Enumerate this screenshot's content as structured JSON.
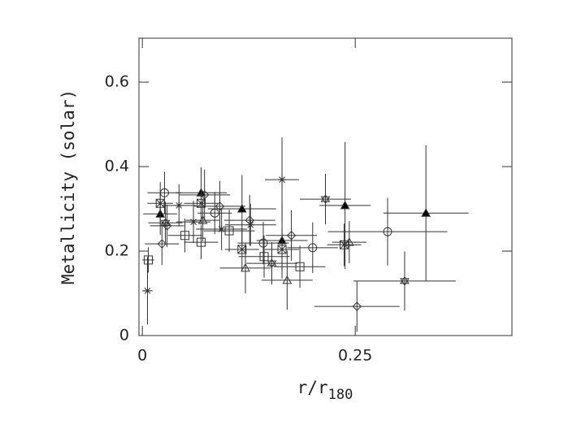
{
  "chart_data": {
    "type": "scatter",
    "xlabel": {
      "text": "r/r",
      "subscript": "180"
    },
    "ylabel": "Metallicity (solar)",
    "xlim": [
      -0.004,
      0.434
    ],
    "ylim": [
      0,
      0.704
    ],
    "xticks": [
      0,
      0.25
    ],
    "yticks": [
      0,
      {
        "value": 0.2,
        "label": "0.2"
      },
      {
        "value": 0.4,
        "label": "0.4"
      },
      {
        "value": 0.6,
        "label": "0.6"
      }
    ],
    "series": [
      {
        "marker": "triangle-filled",
        "color": "#000000",
        "x": [
          0.021,
          0.069,
          0.117,
          0.164,
          0.238,
          0.333
        ],
        "values": [
          0.288,
          0.338,
          0.3,
          0.225,
          0.308,
          0.29
        ],
        "xerr": [
          0.02,
          0.03,
          0.04,
          0.03,
          0.03,
          0.05
        ],
        "yerr": [
          0.05,
          0.06,
          0.08,
          0.09,
          0.15,
          0.16
        ]
      },
      {
        "marker": "triangle",
        "color": "#000000",
        "x": [
          0.071,
          0.121,
          0.17,
          0.243
        ],
        "values": [
          0.273,
          0.16,
          0.131,
          0.221
        ],
        "xerr": [
          0.02,
          0.03,
          0.03,
          0.02
        ],
        "yerr": [
          0.05,
          0.06,
          0.07,
          0.05
        ]
      },
      {
        "marker": "square",
        "color": "#000000",
        "x": [
          0.007,
          0.05,
          0.069,
          0.102,
          0.143,
          0.185
        ],
        "values": [
          0.179,
          0.237,
          0.221,
          0.248,
          0.187,
          0.163
        ],
        "xerr": [
          0.007,
          0.02,
          0.02,
          0.03,
          0.03,
          0.03
        ],
        "yerr": [
          0.03,
          0.04,
          0.04,
          0.05,
          0.05,
          0.05
        ]
      },
      {
        "marker": "circle",
        "color": "#000000",
        "x": [
          0.026,
          0.085,
          0.142,
          0.2,
          0.288
        ],
        "values": [
          0.338,
          0.29,
          0.219,
          0.208,
          0.246
        ],
        "xerr": [
          0.02,
          0.02,
          0.03,
          0.03,
          0.07
        ],
        "yerr": [
          0.05,
          0.05,
          0.05,
          0.06,
          0.08
        ]
      },
      {
        "marker": "diamond",
        "color": "#000000",
        "x": [
          0.023,
          0.029,
          0.073,
          0.091,
          0.126,
          0.175,
          0.252
        ],
        "values": [
          0.217,
          0.26,
          0.333,
          0.306,
          0.273,
          0.237,
          0.069
        ],
        "xerr": [
          0.02,
          0.02,
          0.03,
          0.03,
          0.03,
          0.03,
          0.05
        ],
        "yerr": [
          0.05,
          0.05,
          0.06,
          0.06,
          0.06,
          0.06,
          0.06
        ]
      },
      {
        "marker": "square-x",
        "color": "#000000",
        "x": [
          0.021,
          0.069,
          0.117,
          0.164,
          0.237
        ],
        "values": [
          0.313,
          0.313,
          0.204,
          0.204,
          0.215
        ],
        "xerr": [
          0.015,
          0.02,
          0.02,
          0.02,
          0.02
        ],
        "yerr": [
          0.05,
          0.05,
          0.05,
          0.05,
          0.05
        ]
      },
      {
        "marker": "asterisk",
        "color": "#000000",
        "x": [
          0.006,
          0.043,
          0.06,
          0.093,
          0.127,
          0.164
        ],
        "values": [
          0.106,
          0.308,
          0.269,
          0.252,
          0.262,
          0.369
        ],
        "xerr": [
          0.006,
          0.02,
          0.02,
          0.03,
          0.03,
          0.02
        ],
        "yerr": [
          0.08,
          0.05,
          0.05,
          0.05,
          0.05,
          0.1
        ]
      },
      {
        "marker": "star",
        "color": "#000000",
        "x": [
          0.027,
          0.152,
          0.215,
          0.308
        ],
        "values": [
          0.267,
          0.171,
          0.323,
          0.129
        ],
        "xerr": [
          0.02,
          0.03,
          0.03,
          0.06
        ],
        "yerr": [
          0.05,
          0.05,
          0.06,
          0.07
        ]
      }
    ]
  }
}
